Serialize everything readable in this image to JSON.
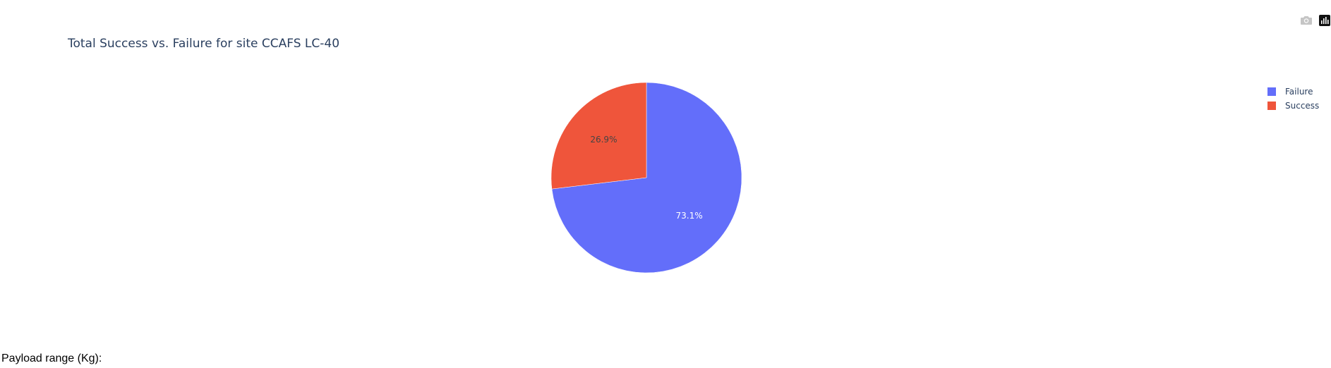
{
  "chart_data": {
    "type": "pie",
    "title": "Total Success vs. Failure for site CCAFS LC-40",
    "labels": [
      "Failure",
      "Success"
    ],
    "values": [
      73.1,
      26.9
    ],
    "value_labels": [
      "73.1%",
      "26.9%"
    ],
    "colors": [
      "#636efa",
      "#ef553b"
    ],
    "label_colors": [
      "#ffffff",
      "#444444"
    ],
    "legend_position": "top-right"
  },
  "modebar": {
    "camera_icon": "camera-icon",
    "plotly_logo_icon": "plotly-logo-icon"
  },
  "controls": {
    "payload_label": "Payload range (Kg):"
  }
}
